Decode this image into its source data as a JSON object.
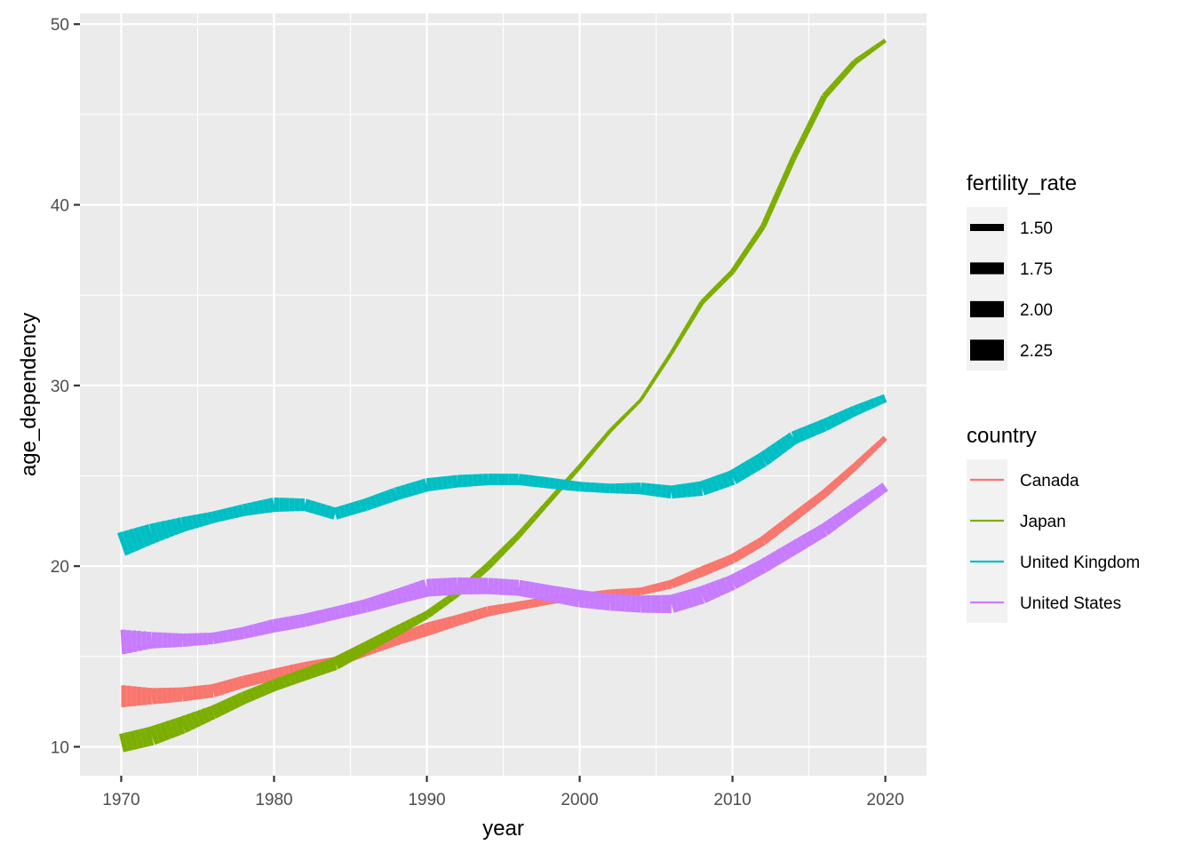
{
  "chart_data": {
    "type": "line",
    "title": "",
    "xlabel": "year",
    "ylabel": "age_dependency",
    "xlim": [
      1967.3,
      2022.7
    ],
    "ylim": [
      8.4,
      50.6
    ],
    "x_ticks": [
      1970,
      1980,
      1990,
      2000,
      2010,
      2020
    ],
    "y_ticks": [
      10,
      20,
      30,
      40,
      50
    ],
    "grid": true,
    "legend_placement": "right",
    "legends": {
      "size": {
        "title": "fertility_rate",
        "entries": [
          {
            "label": "1.50",
            "value": 1.5
          },
          {
            "label": "1.75",
            "value": 1.75
          },
          {
            "label": "2.00",
            "value": 2.0
          },
          {
            "label": "2.25",
            "value": 2.25
          }
        ]
      },
      "color": {
        "title": "country",
        "entries": [
          "Canada",
          "Japan",
          "United Kingdom",
          "United States"
        ]
      }
    },
    "series": [
      {
        "name": "Canada",
        "color": "#F8766D",
        "points": [
          {
            "x": 1970,
            "y": 12.8,
            "fertility_rate": 2.33
          },
          {
            "x": 1972,
            "y": 12.8,
            "fertility_rate": 2.0
          },
          {
            "x": 1974,
            "y": 12.9,
            "fertility_rate": 1.88
          },
          {
            "x": 1976,
            "y": 13.1,
            "fertility_rate": 1.83
          },
          {
            "x": 1978,
            "y": 13.6,
            "fertility_rate": 1.76
          },
          {
            "x": 1980,
            "y": 14.0,
            "fertility_rate": 1.74
          },
          {
            "x": 1982,
            "y": 14.4,
            "fertility_rate": 1.69
          },
          {
            "x": 1984,
            "y": 14.7,
            "fertility_rate": 1.67
          },
          {
            "x": 1986,
            "y": 15.3,
            "fertility_rate": 1.67
          },
          {
            "x": 1988,
            "y": 15.9,
            "fertility_rate": 1.68
          },
          {
            "x": 1990,
            "y": 16.5,
            "fertility_rate": 1.83
          },
          {
            "x": 1992,
            "y": 17.0,
            "fertility_rate": 1.71
          },
          {
            "x": 1994,
            "y": 17.5,
            "fertility_rate": 1.66
          },
          {
            "x": 1996,
            "y": 17.8,
            "fertility_rate": 1.59
          },
          {
            "x": 1998,
            "y": 18.1,
            "fertility_rate": 1.55
          },
          {
            "x": 2000,
            "y": 18.3,
            "fertility_rate": 1.51
          },
          {
            "x": 2002,
            "y": 18.5,
            "fertility_rate": 1.52
          },
          {
            "x": 2004,
            "y": 18.6,
            "fertility_rate": 1.53
          },
          {
            "x": 2006,
            "y": 19.0,
            "fertility_rate": 1.59
          },
          {
            "x": 2008,
            "y": 19.7,
            "fertility_rate": 1.67
          },
          {
            "x": 2010,
            "y": 20.4,
            "fertility_rate": 1.63
          },
          {
            "x": 2012,
            "y": 21.4,
            "fertility_rate": 1.61
          },
          {
            "x": 2014,
            "y": 22.7,
            "fertility_rate": 1.6
          },
          {
            "x": 2016,
            "y": 24.0,
            "fertility_rate": 1.56
          },
          {
            "x": 2018,
            "y": 25.5,
            "fertility_rate": 1.5
          },
          {
            "x": 2020,
            "y": 27.1,
            "fertility_rate": 1.4
          }
        ]
      },
      {
        "name": "Japan",
        "color": "#7CAE00",
        "points": [
          {
            "x": 1970,
            "y": 10.2,
            "fertility_rate": 2.13
          },
          {
            "x": 1972,
            "y": 10.6,
            "fertility_rate": 2.14
          },
          {
            "x": 1974,
            "y": 11.2,
            "fertility_rate": 2.05
          },
          {
            "x": 1976,
            "y": 11.9,
            "fertility_rate": 1.85
          },
          {
            "x": 1978,
            "y": 12.7,
            "fertility_rate": 1.79
          },
          {
            "x": 1980,
            "y": 13.4,
            "fertility_rate": 1.75
          },
          {
            "x": 1982,
            "y": 14.0,
            "fertility_rate": 1.77
          },
          {
            "x": 1984,
            "y": 14.6,
            "fertility_rate": 1.81
          },
          {
            "x": 1986,
            "y": 15.5,
            "fertility_rate": 1.72
          },
          {
            "x": 1988,
            "y": 16.4,
            "fertility_rate": 1.66
          },
          {
            "x": 1990,
            "y": 17.3,
            "fertility_rate": 1.54
          },
          {
            "x": 1992,
            "y": 18.5,
            "fertility_rate": 1.5
          },
          {
            "x": 1994,
            "y": 20.0,
            "fertility_rate": 1.5
          },
          {
            "x": 1996,
            "y": 21.7,
            "fertility_rate": 1.43
          },
          {
            "x": 1998,
            "y": 23.6,
            "fertility_rate": 1.38
          },
          {
            "x": 2000,
            "y": 25.5,
            "fertility_rate": 1.36
          },
          {
            "x": 2002,
            "y": 27.5,
            "fertility_rate": 1.32
          },
          {
            "x": 2004,
            "y": 29.2,
            "fertility_rate": 1.29
          },
          {
            "x": 2006,
            "y": 31.8,
            "fertility_rate": 1.32
          },
          {
            "x": 2008,
            "y": 34.6,
            "fertility_rate": 1.37
          },
          {
            "x": 2010,
            "y": 36.3,
            "fertility_rate": 1.39
          },
          {
            "x": 2012,
            "y": 38.8,
            "fertility_rate": 1.41
          },
          {
            "x": 2014,
            "y": 42.6,
            "fertility_rate": 1.42
          },
          {
            "x": 2016,
            "y": 46.0,
            "fertility_rate": 1.44
          },
          {
            "x": 2018,
            "y": 47.9,
            "fertility_rate": 1.42
          },
          {
            "x": 2020,
            "y": 49.1,
            "fertility_rate": 1.33
          }
        ]
      },
      {
        "name": "United Kingdom",
        "color": "#00BFC4",
        "points": [
          {
            "x": 1970,
            "y": 21.2,
            "fertility_rate": 2.43
          },
          {
            "x": 1972,
            "y": 21.8,
            "fertility_rate": 2.2
          },
          {
            "x": 1974,
            "y": 22.3,
            "fertility_rate": 1.92
          },
          {
            "x": 1976,
            "y": 22.7,
            "fertility_rate": 1.74
          },
          {
            "x": 1978,
            "y": 23.1,
            "fertility_rate": 1.76
          },
          {
            "x": 1980,
            "y": 23.4,
            "fertility_rate": 1.9
          },
          {
            "x": 1982,
            "y": 23.4,
            "fertility_rate": 1.78
          },
          {
            "x": 1984,
            "y": 22.9,
            "fertility_rate": 1.77
          },
          {
            "x": 1986,
            "y": 23.4,
            "fertility_rate": 1.78
          },
          {
            "x": 1988,
            "y": 24.0,
            "fertility_rate": 1.82
          },
          {
            "x": 1990,
            "y": 24.5,
            "fertility_rate": 1.83
          },
          {
            "x": 1992,
            "y": 24.7,
            "fertility_rate": 1.79
          },
          {
            "x": 1994,
            "y": 24.8,
            "fertility_rate": 1.74
          },
          {
            "x": 1996,
            "y": 24.8,
            "fertility_rate": 1.73
          },
          {
            "x": 1998,
            "y": 24.6,
            "fertility_rate": 1.71
          },
          {
            "x": 2000,
            "y": 24.4,
            "fertility_rate": 1.64
          },
          {
            "x": 2002,
            "y": 24.3,
            "fertility_rate": 1.63
          },
          {
            "x": 2004,
            "y": 24.3,
            "fertility_rate": 1.75
          },
          {
            "x": 2006,
            "y": 24.1,
            "fertility_rate": 1.82
          },
          {
            "x": 2008,
            "y": 24.3,
            "fertility_rate": 1.91
          },
          {
            "x": 2010,
            "y": 24.9,
            "fertility_rate": 1.92
          },
          {
            "x": 2012,
            "y": 25.9,
            "fertility_rate": 1.92
          },
          {
            "x": 2014,
            "y": 27.1,
            "fertility_rate": 1.83
          },
          {
            "x": 2016,
            "y": 27.8,
            "fertility_rate": 1.79
          },
          {
            "x": 2018,
            "y": 28.6,
            "fertility_rate": 1.68
          },
          {
            "x": 2020,
            "y": 29.3,
            "fertility_rate": 1.56
          }
        ]
      },
      {
        "name": "United States",
        "color": "#C77CFF",
        "points": [
          {
            "x": 1970,
            "y": 15.8,
            "fertility_rate": 2.48
          },
          {
            "x": 1972,
            "y": 15.9,
            "fertility_rate": 2.01
          },
          {
            "x": 1974,
            "y": 15.9,
            "fertility_rate": 1.84
          },
          {
            "x": 1976,
            "y": 16.0,
            "fertility_rate": 1.74
          },
          {
            "x": 1978,
            "y": 16.3,
            "fertility_rate": 1.76
          },
          {
            "x": 1980,
            "y": 16.7,
            "fertility_rate": 1.84
          },
          {
            "x": 1982,
            "y": 17.0,
            "fertility_rate": 1.83
          },
          {
            "x": 1984,
            "y": 17.4,
            "fertility_rate": 1.81
          },
          {
            "x": 1986,
            "y": 17.8,
            "fertility_rate": 1.84
          },
          {
            "x": 1988,
            "y": 18.3,
            "fertility_rate": 1.93
          },
          {
            "x": 1990,
            "y": 18.8,
            "fertility_rate": 2.08
          },
          {
            "x": 1992,
            "y": 18.9,
            "fertility_rate": 2.05
          },
          {
            "x": 1994,
            "y": 18.9,
            "fertility_rate": 2.0
          },
          {
            "x": 1996,
            "y": 18.8,
            "fertility_rate": 1.98
          },
          {
            "x": 1998,
            "y": 18.5,
            "fertility_rate": 2.0
          },
          {
            "x": 2000,
            "y": 18.2,
            "fertility_rate": 2.06
          },
          {
            "x": 2002,
            "y": 18.0,
            "fertility_rate": 2.02
          },
          {
            "x": 2004,
            "y": 17.9,
            "fertility_rate": 2.05
          },
          {
            "x": 2006,
            "y": 17.9,
            "fertility_rate": 2.11
          },
          {
            "x": 2008,
            "y": 18.4,
            "fertility_rate": 2.07
          },
          {
            "x": 2010,
            "y": 19.1,
            "fertility_rate": 1.93
          },
          {
            "x": 2012,
            "y": 20.0,
            "fertility_rate": 1.88
          },
          {
            "x": 2014,
            "y": 21.0,
            "fertility_rate": 1.86
          },
          {
            "x": 2016,
            "y": 22.0,
            "fertility_rate": 1.82
          },
          {
            "x": 2018,
            "y": 23.2,
            "fertility_rate": 1.73
          },
          {
            "x": 2020,
            "y": 24.4,
            "fertility_rate": 1.64
          }
        ]
      }
    ]
  }
}
